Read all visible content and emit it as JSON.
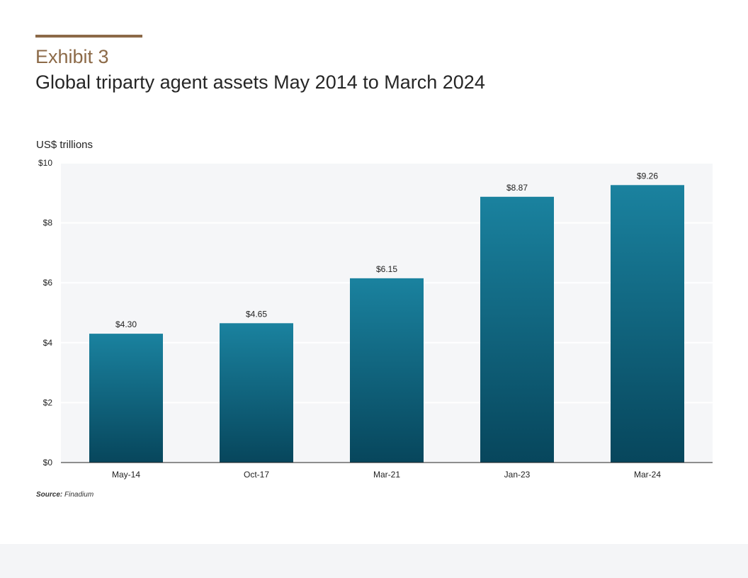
{
  "header": {
    "exhibit": "Exhibit 3",
    "title": "Global triparty agent assets May 2014 to March 2024"
  },
  "source": {
    "label": "Source:",
    "text": "Finadium"
  },
  "colors": {
    "accent": "#8c6a48",
    "bar_top": "#1a829f",
    "bar_bottom": "#07465c",
    "plot_bg": "#f5f6f8"
  },
  "chart_data": {
    "type": "bar",
    "title": "Global triparty agent assets May 2014 to March 2024",
    "ylabel": "US$ trillions",
    "xlabel": "",
    "categories": [
      "May-14",
      "Oct-17",
      "Mar-21",
      "Jan-23",
      "Mar-24"
    ],
    "values": [
      4.3,
      4.65,
      6.15,
      8.87,
      9.26
    ],
    "value_labels": [
      "$4.30",
      "$4.65",
      "$6.15",
      "$8.87",
      "$9.26"
    ],
    "ylim": [
      0,
      10
    ],
    "yticks": [
      0,
      2,
      4,
      6,
      8,
      10
    ],
    "ytick_labels": [
      "$0",
      "$2",
      "$4",
      "$6",
      "$8",
      "$10"
    ],
    "grid": true
  }
}
